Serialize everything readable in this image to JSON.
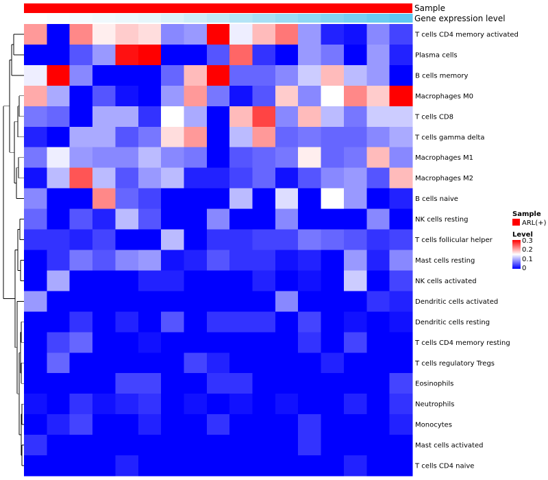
{
  "chart_data": {
    "type": "heatmap",
    "annotation_tracks": [
      {
        "name": "Sample",
        "label": "Sample",
        "color": "#ff0000"
      },
      {
        "name": "Gene expression level",
        "label": "Gene expression level",
        "gradient": [
          "#ffffff",
          "#e4f5fb",
          "#9edcf4",
          "#5ec7f2"
        ]
      }
    ],
    "rows": [
      "T cells CD4 memory activated",
      "Plasma cells",
      "B cells memory",
      "Macrophages M0",
      "T cells CD8",
      "T cells gamma delta",
      "Macrophages M1",
      "Macrophages M2",
      "B cells naive",
      "NK cells resting",
      "T cells follicular helper",
      "Mast cells resting",
      "NK cells activated",
      "Dendritic cells activated",
      "Dendritic cells resting",
      "T cells CD4 memory resting",
      "T cells regulatory  Tregs",
      "Eosinophils",
      "Neutrophils",
      "Monocytes",
      "Mast cells activated",
      "T cells CD4 naive"
    ],
    "n_columns": 17,
    "values": [
      [
        0.21,
        0.0,
        0.22,
        0.16,
        0.18,
        0.17,
        0.08,
        0.09,
        0.3,
        0.14,
        0.19,
        0.23,
        0.09,
        0.02,
        0.01,
        0.08,
        0.04
      ],
      [
        0.0,
        0.0,
        0.05,
        0.09,
        0.29,
        0.3,
        0.0,
        0.0,
        0.05,
        0.24,
        0.03,
        0.0,
        0.09,
        0.07,
        0.0,
        0.09,
        0.02
      ],
      [
        0.14,
        0.3,
        0.08,
        0.0,
        0.0,
        0.0,
        0.06,
        0.19,
        0.3,
        0.06,
        0.06,
        0.08,
        0.12,
        0.19,
        0.11,
        0.09,
        0.0
      ],
      [
        0.2,
        0.1,
        0.0,
        0.05,
        0.01,
        0.0,
        0.09,
        0.21,
        0.07,
        0.01,
        0.05,
        0.18,
        0.08,
        0.15,
        0.22,
        0.18,
        0.3
      ],
      [
        0.07,
        0.06,
        0.0,
        0.1,
        0.1,
        0.03,
        0.15,
        0.1,
        0.0,
        0.19,
        0.26,
        0.08,
        0.19,
        0.11,
        0.07,
        0.12,
        0.12
      ],
      [
        0.02,
        0.0,
        0.1,
        0.1,
        0.05,
        0.07,
        0.17,
        0.21,
        0.0,
        0.11,
        0.21,
        0.06,
        0.07,
        0.06,
        0.06,
        0.08,
        0.1
      ],
      [
        0.07,
        0.14,
        0.09,
        0.08,
        0.08,
        0.11,
        0.08,
        0.07,
        0.0,
        0.05,
        0.06,
        0.07,
        0.16,
        0.06,
        0.07,
        0.19,
        0.08
      ],
      [
        0.01,
        0.11,
        0.25,
        0.11,
        0.05,
        0.09,
        0.11,
        0.02,
        0.02,
        0.04,
        0.06,
        0.01,
        0.05,
        0.08,
        0.09,
        0.05,
        0.19
      ],
      [
        0.08,
        0.0,
        0.0,
        0.22,
        0.06,
        0.04,
        0.0,
        0.0,
        0.0,
        0.11,
        0.0,
        0.13,
        0.0,
        0.15,
        0.09,
        0.0,
        0.02
      ],
      [
        0.06,
        0.0,
        0.05,
        0.02,
        0.11,
        0.05,
        0.0,
        0.0,
        0.08,
        0.0,
        0.0,
        0.08,
        0.0,
        0.0,
        0.0,
        0.08,
        0.0
      ],
      [
        0.03,
        0.03,
        0.02,
        0.04,
        0.0,
        0.0,
        0.11,
        0.0,
        0.03,
        0.03,
        0.04,
        0.04,
        0.07,
        0.06,
        0.05,
        0.03,
        0.04
      ],
      [
        0.0,
        0.03,
        0.07,
        0.05,
        0.08,
        0.09,
        0.01,
        0.02,
        0.05,
        0.03,
        0.03,
        0.01,
        0.02,
        0.0,
        0.09,
        0.02,
        0.08
      ],
      [
        0.0,
        0.1,
        0.0,
        0.0,
        0.0,
        0.02,
        0.02,
        0.0,
        0.0,
        0.0,
        0.02,
        0.0,
        0.01,
        0.0,
        0.12,
        0.0,
        0.04
      ],
      [
        0.09,
        0.0,
        0.0,
        0.0,
        0.0,
        0.0,
        0.0,
        0.0,
        0.0,
        0.0,
        0.0,
        0.08,
        0.0,
        0.0,
        0.0,
        0.03,
        0.02
      ],
      [
        0.0,
        0.0,
        0.03,
        0.0,
        0.02,
        0.0,
        0.05,
        0.0,
        0.03,
        0.03,
        0.03,
        0.0,
        0.04,
        0.0,
        0.01,
        0.0,
        0.01
      ],
      [
        0.0,
        0.04,
        0.06,
        0.0,
        0.0,
        0.01,
        0.0,
        0.0,
        0.0,
        0.0,
        0.0,
        0.0,
        0.03,
        0.0,
        0.04,
        0.0,
        0.0
      ],
      [
        0.0,
        0.06,
        0.0,
        0.0,
        0.0,
        0.0,
        0.0,
        0.04,
        0.02,
        0.0,
        0.0,
        0.0,
        0.0,
        0.02,
        0.0,
        0.0,
        0.0
      ],
      [
        0.0,
        0.0,
        0.0,
        0.0,
        0.04,
        0.04,
        0.0,
        0.0,
        0.03,
        0.03,
        0.0,
        0.0,
        0.0,
        0.0,
        0.0,
        0.0,
        0.04
      ],
      [
        0.01,
        0.0,
        0.03,
        0.01,
        0.02,
        0.03,
        0.0,
        0.01,
        0.0,
        0.01,
        0.0,
        0.01,
        0.0,
        0.0,
        0.02,
        0.0,
        0.03
      ],
      [
        0.0,
        0.02,
        0.04,
        0.0,
        0.0,
        0.02,
        0.0,
        0.0,
        0.03,
        0.0,
        0.0,
        0.0,
        0.03,
        0.0,
        0.0,
        0.0,
        0.02
      ],
      [
        0.03,
        0.0,
        0.0,
        0.0,
        0.0,
        0.0,
        0.0,
        0.0,
        0.0,
        0.0,
        0.0,
        0.0,
        0.03,
        0.0,
        0.0,
        0.0,
        0.0
      ],
      [
        0.0,
        0.0,
        0.0,
        0.0,
        0.02,
        0.0,
        0.0,
        0.0,
        0.0,
        0.0,
        0.0,
        0.0,
        0.0,
        0.0,
        0.02,
        0.0,
        0.0
      ]
    ],
    "color_scale": {
      "min": 0,
      "max": 0.3,
      "low": "#0000ff",
      "mid": "#ffffff",
      "high": "#ff0000",
      "mid_value": 0.15
    },
    "legend": {
      "sample": {
        "title": "Sample",
        "entries": [
          {
            "label": "ARL(+)",
            "color": "#ff0000"
          }
        ]
      },
      "level": {
        "title": "Level",
        "ticks": [
          "0.3",
          "0.2",
          "0.1",
          "0"
        ]
      }
    },
    "row_dendrogram": true
  }
}
